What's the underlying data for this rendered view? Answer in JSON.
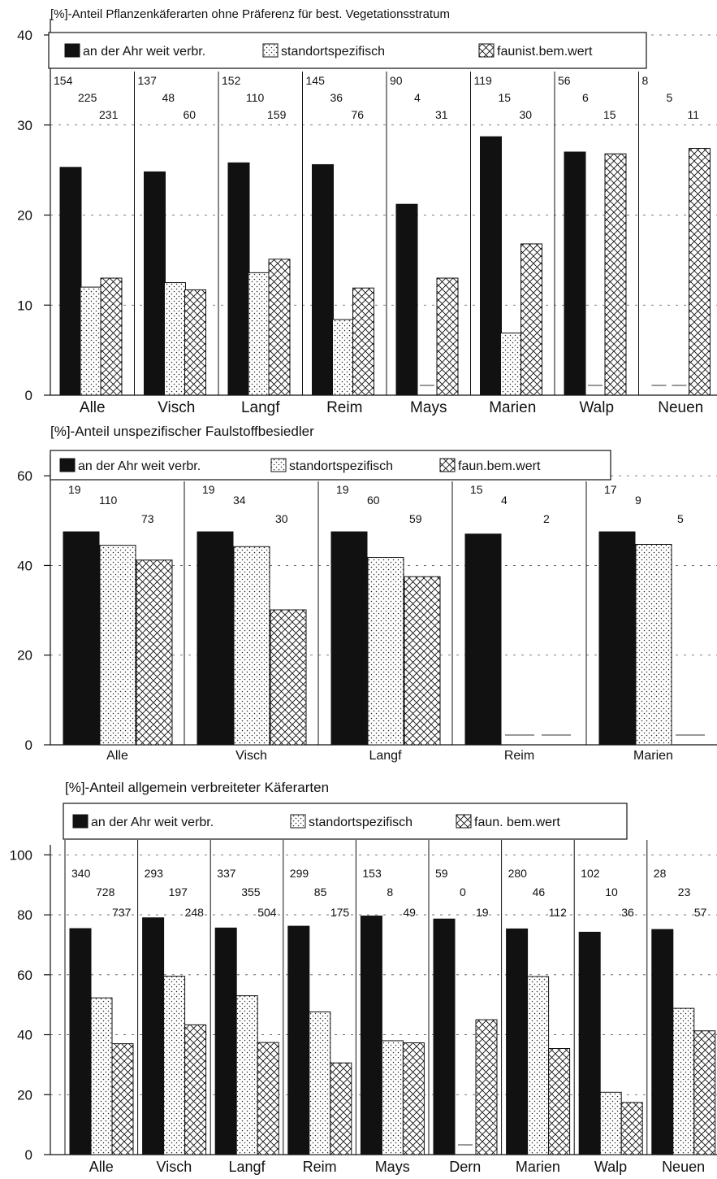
{
  "chart_data": [
    {
      "type": "bar",
      "title": "[%]-Anteil Pflanzenkäferarten ohne Präferenz für best. Vegetationsstratum",
      "categories": [
        "Alle",
        "Visch",
        "Langf",
        "Reim",
        "Mays",
        "Marien",
        "Walp",
        "Neuen"
      ],
      "ylim": [
        0,
        40
      ],
      "yticks": [
        0,
        10,
        20,
        30,
        40
      ],
      "grid": "dashed-horizontal",
      "legend_position": "top-left",
      "series": [
        {
          "name": "an der Ahr weit verbr.",
          "pattern": "solid",
          "values": [
            25.3,
            24.8,
            25.8,
            25.6,
            21.2,
            28.7,
            27.0,
            0
          ]
        },
        {
          "name": "standortspezifisch",
          "pattern": "dots",
          "values": [
            12.0,
            12.5,
            13.6,
            8.4,
            0,
            6.9,
            0,
            0
          ]
        },
        {
          "name": "faunist.bem.wert",
          "pattern": "crosshatch",
          "values": [
            13.0,
            11.7,
            15.1,
            11.9,
            13.0,
            16.8,
            26.8,
            27.4
          ]
        }
      ],
      "counts": [
        [
          "154",
          "225",
          "231"
        ],
        [
          "137",
          "48",
          "60"
        ],
        [
          "152",
          "110",
          "159"
        ],
        [
          "145",
          "36",
          "76"
        ],
        [
          "90",
          "4",
          "31"
        ],
        [
          "119",
          "15",
          "30"
        ],
        [
          "56",
          "6",
          "15"
        ],
        [
          "8",
          "5",
          "11"
        ]
      ]
    },
    {
      "type": "bar",
      "title": "[%]-Anteil unspezifischer Faulstoffbesiedler",
      "categories": [
        "Alle",
        "Visch",
        "Langf",
        "Reim",
        "Marien"
      ],
      "ylim": [
        0,
        70
      ],
      "yticks": [
        0,
        20,
        40,
        60
      ],
      "grid": "dashed-horizontal",
      "legend_position": "top-left",
      "series": [
        {
          "name": "an der Ahr weit verbr.",
          "pattern": "solid",
          "values": [
            47.5,
            47.5,
            47.5,
            47.0,
            47.5
          ]
        },
        {
          "name": "standortspezifisch",
          "pattern": "dots",
          "values": [
            44.5,
            44.2,
            41.8,
            0,
            44.7
          ]
        },
        {
          "name": "faun.bem.wert",
          "pattern": "crosshatch",
          "values": [
            41.2,
            30.1,
            37.5,
            0,
            0
          ]
        }
      ],
      "counts": [
        [
          "19",
          "110",
          "73"
        ],
        [
          "19",
          "34",
          "30"
        ],
        [
          "19",
          "60",
          "59"
        ],
        [
          "15",
          "4",
          "2"
        ],
        [
          "17",
          "9",
          "5"
        ]
      ]
    },
    {
      "type": "bar",
      "title": "[%]-Anteil allgemein verbreiteter Käferarten",
      "categories": [
        "Alle",
        "Visch",
        "Langf",
        "Reim",
        "Mays",
        "Dern",
        "Marien",
        "Walp",
        "Neuen"
      ],
      "ylim": [
        0,
        118
      ],
      "yticks": [
        0,
        20,
        40,
        60,
        80,
        100
      ],
      "grid": "dashed-horizontal",
      "legend_position": "top-left",
      "series": [
        {
          "name": "an der Ahr weit verbr.",
          "pattern": "solid",
          "values": [
            75.4,
            79.0,
            75.6,
            76.2,
            79.6,
            78.6,
            75.3,
            74.2,
            75.1
          ]
        },
        {
          "name": "standortspezifisch",
          "pattern": "dots",
          "values": [
            52.3,
            59.5,
            53.0,
            47.6,
            38.0,
            0,
            59.4,
            20.8,
            48.8
          ]
        },
        {
          "name": "faun. bem.wert",
          "pattern": "crosshatch",
          "values": [
            37.0,
            43.3,
            37.4,
            30.6,
            37.3,
            45.0,
            35.4,
            17.4,
            41.3
          ]
        }
      ],
      "counts": [
        [
          "340",
          "728",
          "737"
        ],
        [
          "293",
          "197",
          "248"
        ],
        [
          "337",
          "355",
          "504"
        ],
        [
          "299",
          "85",
          "175"
        ],
        [
          "153",
          "8",
          "49"
        ],
        [
          "59",
          "0",
          "19"
        ],
        [
          "280",
          "46",
          "112"
        ],
        [
          "102",
          "10",
          "36"
        ],
        [
          "28",
          "23",
          "57"
        ]
      ]
    }
  ]
}
